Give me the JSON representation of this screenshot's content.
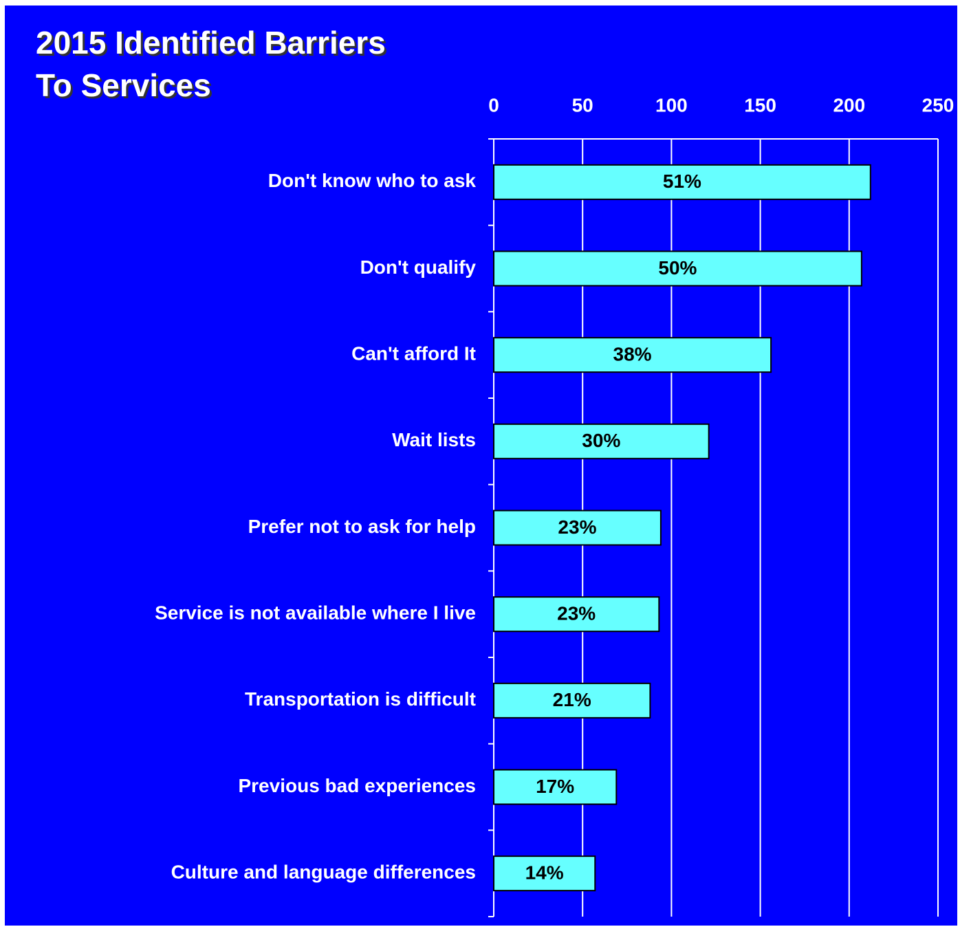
{
  "chart_data": {
    "type": "bar",
    "orientation": "horizontal",
    "title": [
      "2015 Identified Barriers",
      "To Services"
    ],
    "categories": [
      "Don't know who to ask",
      "Don't qualify",
      "Can't afford It",
      "Wait lists",
      "Prefer not to ask for help",
      "Service is not available where I live",
      "Transportation is difficult",
      "Previous bad experiences",
      "Culture and language differences"
    ],
    "values": [
      212,
      207,
      156,
      121,
      94,
      93,
      88,
      69,
      57
    ],
    "bar_labels": [
      "51%",
      "50%",
      "38%",
      "30%",
      "23%",
      "23%",
      "21%",
      "17%",
      "14%"
    ],
    "color": "#66ffff",
    "xlim": [
      0,
      250
    ],
    "xticks": [
      0,
      50,
      100,
      150,
      200,
      250
    ],
    "grid": true
  }
}
